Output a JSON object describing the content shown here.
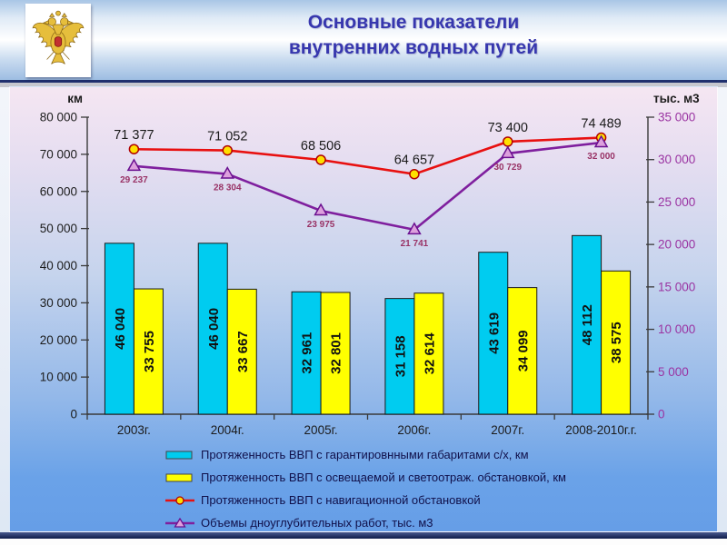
{
  "header": {
    "title_line1": "Основные показатели",
    "title_line2": "внутренних водных путей",
    "title_color": "#3737ae",
    "emblem": "russian-coat-of-arms-double-headed-eagle"
  },
  "chart_data": {
    "type": "combo-bar-line",
    "categories": [
      "2003г.",
      "2004г.",
      "2005г.",
      "2006г.",
      "2007г.",
      "2008-2010г.г."
    ],
    "left_axis": {
      "label": "км",
      "min": 0,
      "max": 80000,
      "step": 10000,
      "tick_color": "#1c1c1c"
    },
    "right_axis": {
      "label": "тыс. м3",
      "min": 0,
      "max": 35000,
      "step": 5000,
      "tick_color": "#9a33a2"
    },
    "grid": false,
    "legend_position": "bottom",
    "series": [
      {
        "name": "Протяженность ВВП с гарантировнными габаритами с/х, км",
        "type": "bar",
        "axis": "left",
        "color": "#00ccf0",
        "values": [
          46040,
          46040,
          32961,
          31158,
          43619,
          48112
        ],
        "label_color": "#111111"
      },
      {
        "name": "Протяженность ВВП с освещаемой и светоотраж. обстановкой, км",
        "type": "bar",
        "axis": "left",
        "color": "#ffff00",
        "values": [
          33755,
          33667,
          32801,
          32614,
          34099,
          38575
        ],
        "label_color": "#111111"
      },
      {
        "name": "Протяженность ВВП с навигационной обстановкой",
        "type": "line",
        "axis": "left",
        "color": "#e81010",
        "marker": "circle",
        "marker_fill": "#ffe000",
        "marker_stroke": "#b00000",
        "values": [
          71377,
          71052,
          68506,
          64657,
          73400,
          74489
        ],
        "label_color": "#1a1a1a"
      },
      {
        "name": "Объемы дноуглубительных работ, тыс. м3",
        "type": "line",
        "axis": "right",
        "color": "#7f1f9e",
        "marker": "triangle",
        "marker_fill": "#dda0dd",
        "marker_stroke": "#6a1090",
        "values": [
          29237,
          28304,
          23975,
          21741,
          30729,
          32000
        ],
        "label_color": "#993366"
      }
    ]
  }
}
